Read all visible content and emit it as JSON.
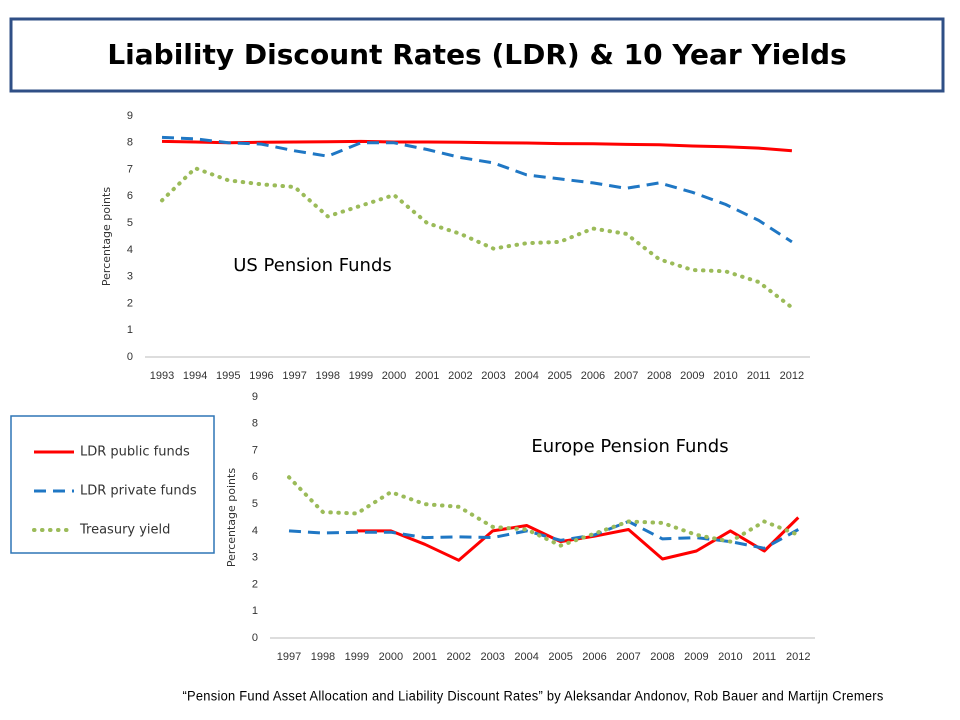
{
  "title": "Liability Discount Rates (LDR) & 10 Year Yields",
  "citation": "“Pension Fund Asset Allocation and Liability Discount Rates” by Aleksandar Andonov, Rob Bauer and Martijn Cremers",
  "chart_data": [
    {
      "type": "line",
      "title": "US Pension Funds",
      "y_label": "Percentage points",
      "categories": [
        "1993",
        "1994",
        "1995",
        "1996",
        "1997",
        "1998",
        "1999",
        "2000",
        "2001",
        "2002",
        "2003",
        "2004",
        "2005",
        "2006",
        "2007",
        "2008",
        "2009",
        "2010",
        "2011",
        "2012"
      ],
      "ylim": [
        0,
        9
      ],
      "yticks": [
        0,
        1,
        2,
        3,
        4,
        5,
        6,
        7,
        8,
        9
      ],
      "grid": false,
      "series": [
        {
          "name": "LDR public funds",
          "color": "#ff0000",
          "style": "solid",
          "values": [
            8.05,
            8.03,
            8.0,
            8.02,
            8.03,
            8.04,
            8.05,
            8.03,
            8.03,
            8.02,
            8.0,
            7.99,
            7.97,
            7.96,
            7.94,
            7.93,
            7.88,
            7.85,
            7.8,
            7.7
          ]
        },
        {
          "name": "LDR private funds",
          "color": "#1f77c4",
          "style": "dashed",
          "values": [
            8.2,
            8.15,
            8.0,
            7.95,
            7.7,
            7.5,
            8.0,
            8.0,
            7.75,
            7.45,
            7.25,
            6.8,
            6.65,
            6.5,
            6.3,
            6.5,
            6.15,
            5.7,
            5.1,
            4.3
          ]
        },
        {
          "name": "Treasury yield",
          "color": "#9bbb59",
          "style": "dotted",
          "values": [
            5.85,
            7.05,
            6.6,
            6.45,
            6.35,
            5.25,
            5.65,
            6.05,
            5.0,
            4.6,
            4.05,
            4.25,
            4.3,
            4.8,
            4.6,
            3.65,
            3.25,
            3.2,
            2.8,
            1.85
          ]
        }
      ]
    },
    {
      "type": "line",
      "title": "Europe Pension Funds",
      "y_label": "Percentage points",
      "categories": [
        "1997",
        "1998",
        "1999",
        "2000",
        "2001",
        "2002",
        "2003",
        "2004",
        "2005",
        "2006",
        "2007",
        "2008",
        "2009",
        "2010",
        "2011",
        "2012"
      ],
      "ylim": [
        0,
        9
      ],
      "yticks": [
        0,
        1,
        2,
        3,
        4,
        5,
        6,
        7,
        8,
        9
      ],
      "grid": false,
      "series": [
        {
          "color": "#ff0000",
          "style": "solid",
          "values": [
            null,
            null,
            4.0,
            4.0,
            3.5,
            2.9,
            4.0,
            4.2,
            3.6,
            3.8,
            4.05,
            2.95,
            3.25,
            4.0,
            3.25,
            4.5
          ]
        },
        {
          "color": "#1f77c4",
          "style": "dashed",
          "values": [
            4.0,
            3.92,
            3.95,
            3.95,
            3.75,
            3.78,
            3.75,
            4.0,
            3.65,
            3.85,
            4.35,
            3.7,
            3.75,
            3.6,
            3.35,
            4.05
          ]
        },
        {
          "color": "#9bbb59",
          "style": "dotted",
          "values": [
            6.0,
            4.7,
            4.65,
            5.45,
            5.0,
            4.9,
            4.15,
            4.05,
            3.45,
            3.9,
            4.35,
            4.3,
            3.85,
            3.6,
            4.35,
            3.85
          ]
        }
      ]
    }
  ]
}
